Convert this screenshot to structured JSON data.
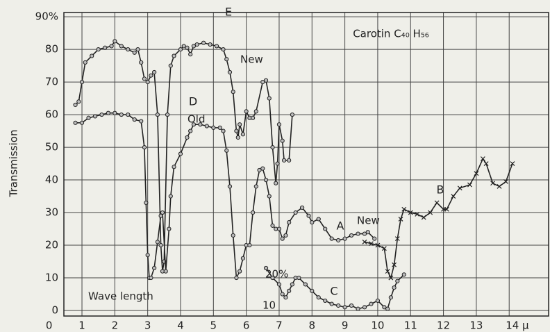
{
  "chart_data": {
    "type": "line",
    "title": "Carotin C₄₀ H₅₆",
    "ylabel": "Transmission",
    "annotations": [
      "New",
      "Old",
      "New",
      "20%",
      "10",
      "Wave length"
    ],
    "xlim": [
      0.45,
      15.2
    ],
    "ylim": [
      -1.7,
      91.3
    ],
    "xticks": [
      0,
      1,
      2,
      3,
      4,
      5,
      6,
      7,
      8,
      9,
      10,
      11,
      12,
      13,
      {
        "value": 14,
        "label": "14 μ"
      }
    ],
    "yticks": [
      0,
      10,
      20,
      30,
      40,
      50,
      60,
      70,
      80,
      {
        "value": 90,
        "label": "90%"
      }
    ],
    "grid": true,
    "series": [
      {
        "name": "E",
        "color": "#222222",
        "marker": "circle",
        "x": [
          0.8,
          0.9,
          1.0,
          1.1,
          1.3,
          1.5,
          1.7,
          1.9,
          2.0,
          2.2,
          2.4,
          2.6,
          2.7,
          2.8,
          2.9,
          3.0,
          3.1,
          3.2,
          3.3,
          3.4,
          3.45,
          3.5,
          3.6,
          3.7,
          3.8,
          4.0,
          4.1,
          4.2,
          4.3,
          4.4,
          4.5,
          4.7,
          4.9,
          5.1,
          5.3,
          5.4,
          5.5,
          5.6,
          5.7,
          5.75,
          5.8,
          5.9,
          6.0,
          6.1,
          6.2,
          6.3,
          6.5,
          6.6,
          6.7,
          6.8,
          6.9,
          6.95,
          7.0,
          7.1,
          7.15,
          7.3,
          7.4
        ],
        "values": [
          63,
          64,
          70,
          76,
          78,
          80,
          80.5,
          81,
          82.5,
          81,
          80,
          79,
          80,
          76,
          71,
          70,
          72,
          73,
          60,
          20,
          12,
          15,
          60,
          75,
          78,
          80,
          81,
          80.5,
          78.5,
          81,
          81.5,
          82,
          81.5,
          81,
          80,
          77,
          73,
          67,
          55,
          53,
          57,
          54,
          61,
          59,
          59,
          61,
          70,
          70.5,
          65,
          50,
          39,
          45,
          57,
          52,
          46,
          46,
          60
        ]
      },
      {
        "name": "D",
        "color": "#222222",
        "marker": "circle",
        "x": [
          0.8,
          1.0,
          1.2,
          1.4,
          1.6,
          1.8,
          2.0,
          2.2,
          2.4,
          2.6,
          2.8,
          2.9,
          2.95,
          3.0,
          3.05,
          3.1,
          3.2,
          3.3,
          3.4,
          3.45,
          3.55,
          3.65,
          3.7,
          3.8,
          4.0,
          4.2,
          4.3,
          4.4,
          4.6,
          4.8,
          5.0,
          5.2,
          5.3,
          5.4,
          5.5,
          5.6,
          5.7,
          5.8,
          5.9,
          6.0
        ],
        "values": [
          57.5,
          57.5,
          59,
          59.5,
          60,
          60.5,
          60.5,
          60,
          60,
          58.5,
          58,
          50,
          33,
          17,
          10,
          10,
          13,
          21,
          29,
          30,
          12,
          25,
          35,
          44,
          48,
          53,
          55,
          57,
          57,
          56.5,
          56,
          56,
          55,
          49,
          38,
          23,
          10,
          12,
          16,
          20
        ]
      },
      {
        "name": "A",
        "color": "#222222",
        "marker": "circle",
        "x": [
          6.1,
          6.2,
          6.3,
          6.4,
          6.5,
          6.6,
          6.7,
          6.8,
          6.9,
          7.0,
          7.1,
          7.2,
          7.3,
          7.5,
          7.7,
          7.9,
          8.0,
          8.2,
          8.4,
          8.6,
          8.8,
          9.0,
          9.2,
          9.4,
          9.6,
          9.7,
          9.9
        ],
        "values": [
          20,
          30,
          38,
          43,
          43.5,
          40,
          35,
          26,
          25,
          25,
          22,
          23,
          27,
          30,
          31.5,
          29,
          27,
          28,
          25,
          22,
          21.5,
          22,
          23,
          23.5,
          23.5,
          24,
          22
        ]
      },
      {
        "name": "B",
        "color": "#222222",
        "marker": "cross",
        "x": [
          9.6,
          9.8,
          10.0,
          10.2,
          10.3,
          10.4,
          10.5,
          10.6,
          10.7,
          10.8,
          11.0,
          11.2,
          11.4,
          11.6,
          11.8,
          12.0,
          12.1,
          12.3,
          12.5,
          12.8,
          13.0,
          13.2,
          13.3,
          13.5,
          13.7,
          13.9,
          14.1
        ],
        "values": [
          21,
          20.5,
          20,
          19,
          12,
          10,
          14,
          22,
          28,
          31,
          30,
          29.5,
          28.5,
          30,
          33,
          31,
          31,
          35,
          37.5,
          38.5,
          42,
          46.5,
          45,
          39,
          38,
          39.5,
          45
        ]
      },
      {
        "name": "C",
        "color": "#222222",
        "marker": "circle",
        "x": [
          6.6,
          6.8,
          7.0,
          7.1,
          7.2,
          7.3,
          7.4,
          7.5,
          7.6,
          7.8,
          8.0,
          8.2,
          8.4,
          8.6,
          8.8,
          9.0,
          9.2,
          9.4,
          9.6,
          9.8,
          10.0,
          10.2,
          10.3,
          10.4,
          10.5,
          10.6,
          10.8
        ],
        "values": [
          13,
          10,
          8,
          5,
          4,
          6,
          8,
          10,
          10,
          8,
          6,
          4,
          3,
          2,
          1.5,
          1,
          1.5,
          0.5,
          1,
          2,
          3,
          1,
          0.5,
          4,
          7,
          9,
          11
        ]
      }
    ]
  }
}
